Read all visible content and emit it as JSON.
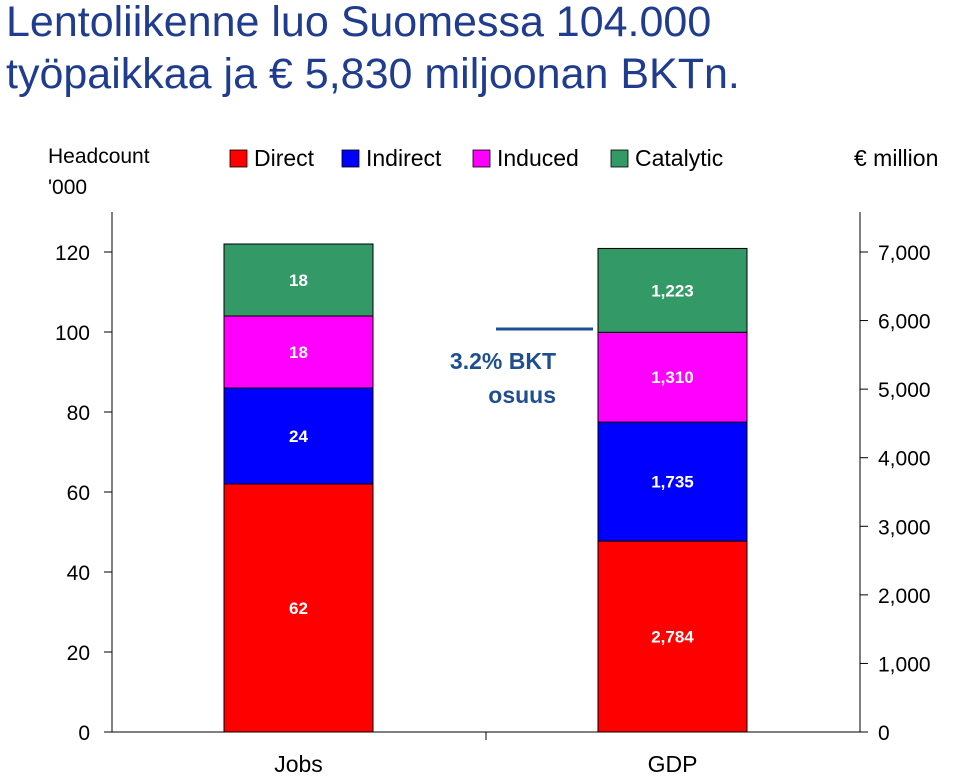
{
  "title_line1": "Lentoliikenne luo Suomessa 104.000",
  "title_line2": "työpaikkaa ja € 5,830 miljoonan BKTn.",
  "left_axis_label_line1": "Headcount",
  "left_axis_label_line2": "'000",
  "right_axis_label": "€ million",
  "annotation_line1": "3.2% BKT",
  "annotation_line2": "osuus",
  "colors": {
    "Direct": "#ff0000",
    "Indirect": "#0000ff",
    "Induced": "#ff00ff",
    "Catalytic": "#339966",
    "annotation": "#1f4f8f"
  },
  "chart_data": {
    "type": "bar",
    "stacked": true,
    "categories": [
      "Jobs",
      "GDP"
    ],
    "series": [
      {
        "name": "Direct",
        "values": [
          62,
          2784
        ],
        "labels": [
          "62",
          "2,784"
        ]
      },
      {
        "name": "Indirect",
        "values": [
          24,
          1735
        ],
        "labels": [
          "24",
          "1,735"
        ]
      },
      {
        "name": "Induced",
        "values": [
          18,
          1310
        ],
        "labels": [
          "18",
          "1,310"
        ]
      },
      {
        "name": "Catalytic",
        "values": [
          18,
          1223
        ],
        "labels": [
          "18",
          "1,223"
        ]
      }
    ],
    "left_axis": {
      "ylim": [
        0,
        120
      ],
      "ticks": [
        "0",
        "20",
        "40",
        "60",
        "80",
        "100",
        "120"
      ],
      "applies_to": "Jobs"
    },
    "right_axis": {
      "ylim": [
        0,
        7000
      ],
      "ticks": [
        "0",
        "1,000",
        "2,000",
        "3,000",
        "4,000",
        "5,000",
        "6,000",
        "7,000"
      ],
      "applies_to": "GDP"
    },
    "legend_position": "top"
  }
}
